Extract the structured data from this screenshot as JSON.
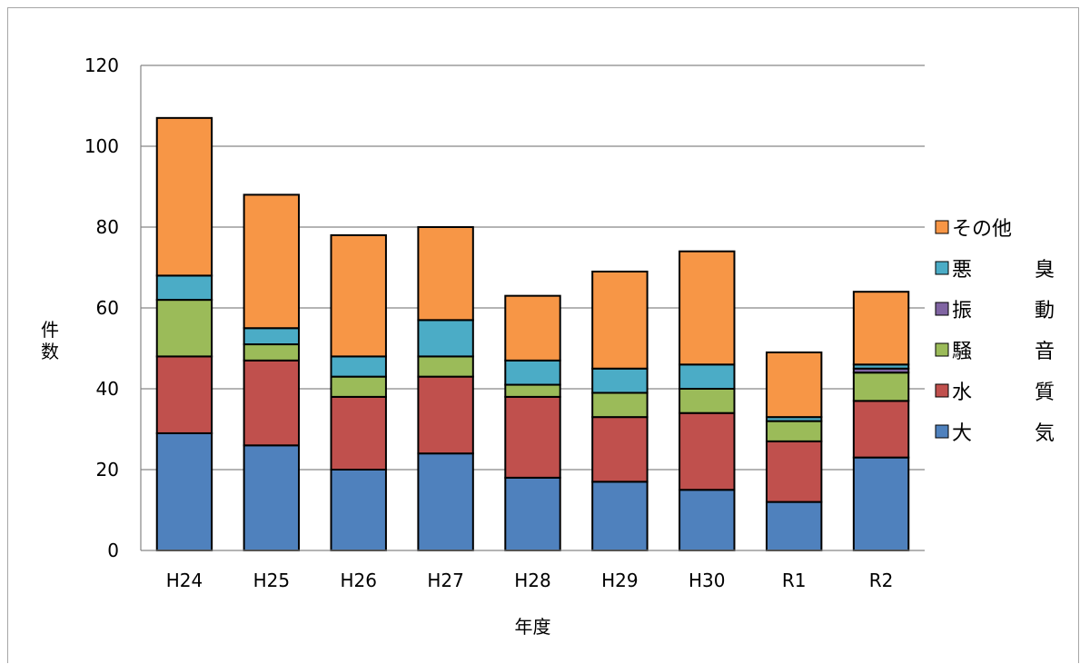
{
  "chart_data": {
    "type": "bar",
    "stacked": true,
    "title": "",
    "xlabel": "年度",
    "ylabel": "件数",
    "ylim": [
      0,
      120
    ],
    "yticks": [
      "0",
      "20",
      "40",
      "60",
      "80",
      "100",
      "120"
    ],
    "grid": true,
    "legend_position": "right",
    "categories": [
      "H24",
      "H25",
      "H26",
      "H27",
      "H28",
      "H29",
      "H30",
      "R1",
      "R2"
    ],
    "series": [
      {
        "name": "大　　気",
        "color": "#4f81bd",
        "values": [
          29,
          26,
          20,
          24,
          18,
          17,
          15,
          12,
          23
        ]
      },
      {
        "name": "水　　質",
        "color": "#c0504d",
        "values": [
          19,
          21,
          18,
          19,
          20,
          16,
          19,
          15,
          14
        ]
      },
      {
        "name": "騒　　音",
        "color": "#9bbb59",
        "values": [
          14,
          4,
          5,
          5,
          3,
          6,
          6,
          5,
          7
        ]
      },
      {
        "name": "振　　動",
        "color": "#8064a2",
        "values": [
          0,
          0,
          0,
          0,
          0,
          0,
          0,
          0,
          1
        ]
      },
      {
        "name": "悪　　臭",
        "color": "#4bacc6",
        "values": [
          6,
          4,
          5,
          9,
          6,
          6,
          6,
          1,
          1
        ]
      },
      {
        "name": "その他",
        "color": "#f79646",
        "values": [
          39,
          33,
          30,
          23,
          16,
          24,
          28,
          16,
          18
        ]
      }
    ]
  }
}
